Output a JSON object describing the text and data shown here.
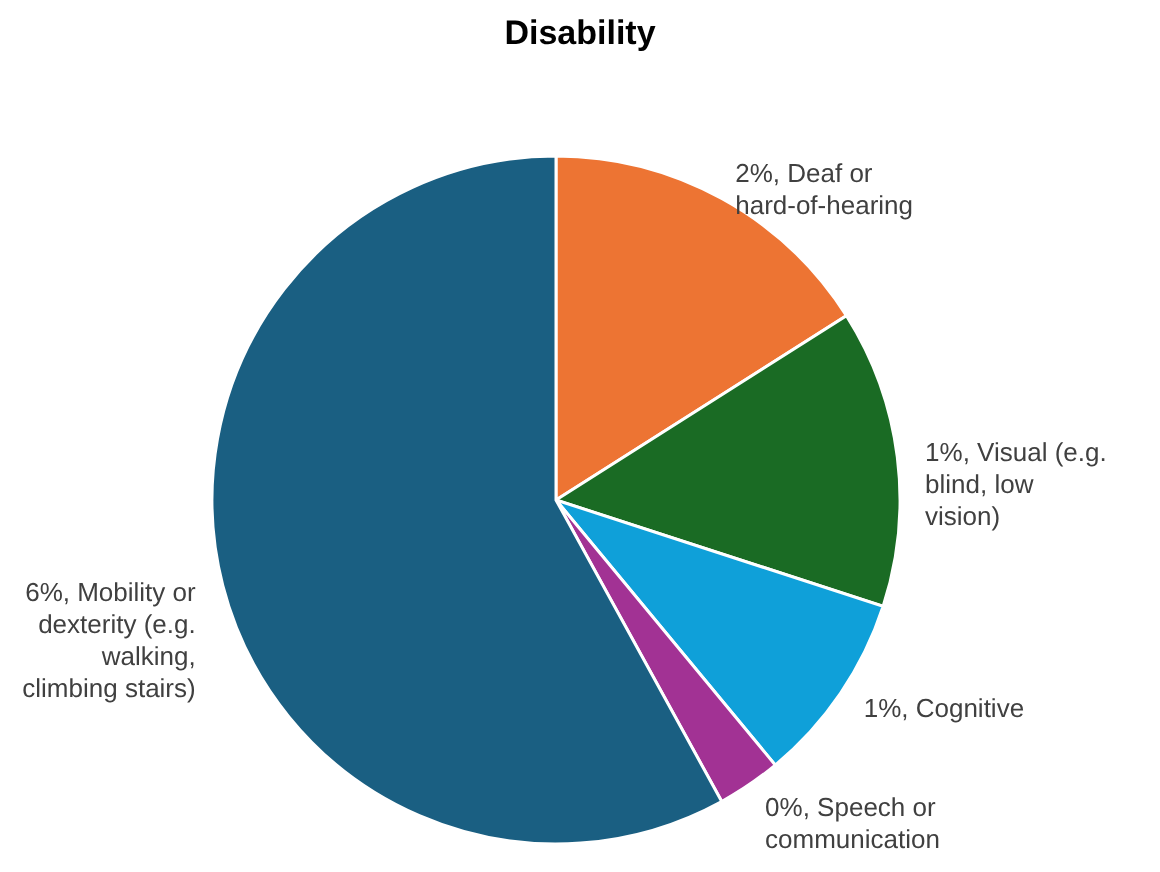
{
  "chart_data": {
    "type": "pie",
    "title": "Disability",
    "categories": [
      "2%, Deaf or hard-of-hearing",
      "1%, Visual (e.g. blind, low vision)",
      "1%, Cognitive",
      "0%, Speech or communication",
      "6%, Mobility or dexterity (e.g. walking, climbing stairs)"
    ],
    "values": [
      16,
      14,
      9,
      3,
      58
    ],
    "colors": [
      "#ed7433",
      "#1a6b24",
      "#0fa0d9",
      "#a23294",
      "#1a5f82"
    ],
    "legend": false
  }
}
